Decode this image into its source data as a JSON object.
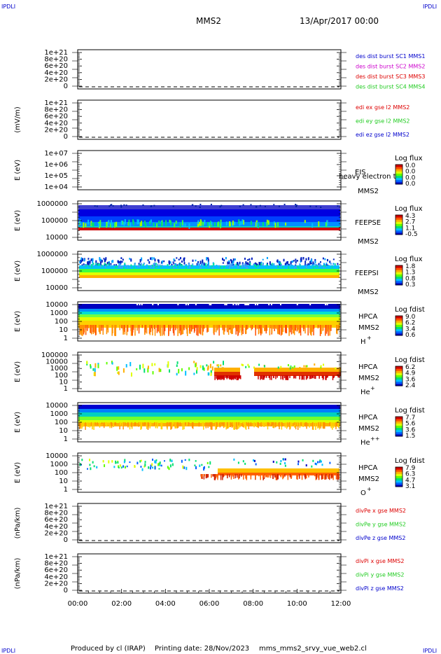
{
  "header": {
    "corner_left_top": "IPDLI",
    "corner_right_top": "IPDLI",
    "mission": "MMS2",
    "datetime": "13/Apr/2017 00:00",
    "corner_left_bottom": "IPDLI",
    "corner_right_bottom": "IPDLI"
  },
  "footer": {
    "produced_by": "Produced by cl (IRAP)",
    "printing_date": "Printing date: 28/Nov/2023",
    "filename": "mms_mms2_srvy_vue_web2.cl"
  },
  "colors": {
    "red": "#dd0000",
    "magenta": "#cc00cc",
    "green": "#22cc22",
    "blue": "#0000cc",
    "frame": "#000000"
  },
  "chart_data": {
    "type": "heatmap",
    "x_ticks": [
      "00:00",
      "02:00",
      "04:00",
      "06:00",
      "08:00",
      "10:00",
      "12:00"
    ],
    "xlim": [
      "00:00",
      "12:00"
    ],
    "panels": [
      {
        "kind": "line",
        "ylabel": "",
        "yticks": [
          "1e+21",
          "8e+20",
          "6e+20",
          "4e+20",
          "2e+20",
          "0"
        ],
        "dashed_zero": true,
        "legend": [
          {
            "text": "des dist burst SC1 MMS1",
            "color": "#0000cc"
          },
          {
            "text": "des dist burst SC2 MMS2",
            "color": "#cc00cc"
          },
          {
            "text": "des dist burst SC3 MMS3",
            "color": "#dd0000"
          },
          {
            "text": "des dist burst SC4 MMS4",
            "color": "#22cc22"
          }
        ]
      },
      {
        "kind": "line",
        "ylabel": "(mV/m)",
        "yticks": [
          "1e+21",
          "8e+20",
          "6e+20",
          "4e+20",
          "2e+20",
          "0"
        ],
        "dashed_zero": true,
        "legend": [
          {
            "text": "edi ex gse l2 MMS2",
            "color": "#dd0000"
          },
          {
            "text": "edi ey gse l2 MMS2",
            "color": "#22cc22"
          },
          {
            "text": "edi ez gse l2 MMS2",
            "color": "#0000cc"
          }
        ]
      },
      {
        "kind": "spectrogram",
        "ylabel": "E (eV)",
        "yticks": [
          "1e+07",
          "1e+06",
          "1e+05",
          "1e+04"
        ],
        "instrument": [
          "EIS",
          "MMS2"
        ],
        "overlay_text": "heavy electron to",
        "colorbar_title": "Log flux",
        "colorbar_values": [
          "0.0",
          "0.0",
          "0.0",
          "0.0"
        ],
        "fill": "empty"
      },
      {
        "kind": "spectrogram",
        "ylabel": "E (eV)",
        "yticks": [
          "1000000",
          "100000",
          "10000"
        ],
        "instrument": [
          "FEEPSE",
          "MMS2"
        ],
        "colorbar_title": "Log flux",
        "colorbar_values": [
          "4.3",
          "2.7",
          "1.1",
          "-0.5"
        ],
        "fill": "feepse"
      },
      {
        "kind": "spectrogram",
        "ylabel": "E (eV)",
        "yticks": [
          "1000000",
          "100000",
          "10000"
        ],
        "instrument": [
          "FEEPSI",
          "MMS2"
        ],
        "colorbar_title": "Log flux",
        "colorbar_values": [
          "1.8",
          "1.3",
          "0.8",
          "0.3"
        ],
        "fill": "feepsi"
      },
      {
        "kind": "spectrogram",
        "ylabel": "E (eV)",
        "yticks": [
          "10000",
          "1000",
          "100",
          "10",
          "1"
        ],
        "instrument": [
          "HPCA",
          "MMS2",
          "H",
          "+"
        ],
        "colorbar_title": "Log fdist",
        "colorbar_values": [
          "9.0",
          "6.2",
          "3.4",
          "0.6"
        ],
        "fill": "hplus"
      },
      {
        "kind": "spectrogram",
        "ylabel": "E (eV)",
        "yticks": [
          "100000",
          "10000",
          "1000",
          "100",
          "10",
          "1"
        ],
        "instrument": [
          "HPCA",
          "MMS2",
          "He",
          "+"
        ],
        "colorbar_title": "Log fdist",
        "colorbar_values": [
          "6.2",
          "4.9",
          "3.6",
          "2.4"
        ],
        "fill": "heplus"
      },
      {
        "kind": "spectrogram",
        "ylabel": "E (eV)",
        "yticks": [
          "10000",
          "1000",
          "100",
          "10",
          "1"
        ],
        "instrument": [
          "HPCA",
          "MMS2",
          "He",
          "++"
        ],
        "colorbar_title": "Log fdist",
        "colorbar_values": [
          "7.7",
          "5.6",
          "3.6",
          "1.5"
        ],
        "fill": "heplusplus"
      },
      {
        "kind": "spectrogram",
        "ylabel": "E (eV)",
        "yticks": [
          "10000",
          "1000",
          "100",
          "10",
          "1"
        ],
        "instrument": [
          "HPCA",
          "MMS2",
          "O",
          "+"
        ],
        "colorbar_title": "Log fdist",
        "colorbar_values": [
          "7.9",
          "6.3",
          "4.7",
          "3.1"
        ],
        "fill": "oplus"
      },
      {
        "kind": "line",
        "ylabel": "(nPa/km)",
        "yticks": [
          "1e+21",
          "8e+20",
          "6e+20",
          "4e+20",
          "2e+20",
          "0"
        ],
        "dashed_zero": true,
        "legend": [
          {
            "text": "divPe x gse MMS2",
            "color": "#dd0000"
          },
          {
            "text": "divPe y gse MMS2",
            "color": "#22cc22"
          },
          {
            "text": "divPe z gse MMS2",
            "color": "#0000cc"
          }
        ]
      },
      {
        "kind": "line",
        "ylabel": "(nPa/km)",
        "yticks": [
          "1e+21",
          "8e+20",
          "6e+20",
          "4e+20",
          "2e+20",
          "0"
        ],
        "dashed_zero": true,
        "legend": [
          {
            "text": "divPi x gse MMS2",
            "color": "#dd0000"
          },
          {
            "text": "divPi y gse MMS2",
            "color": "#22cc22"
          },
          {
            "text": "divPi z gse MMS2",
            "color": "#0000cc"
          }
        ]
      }
    ]
  }
}
